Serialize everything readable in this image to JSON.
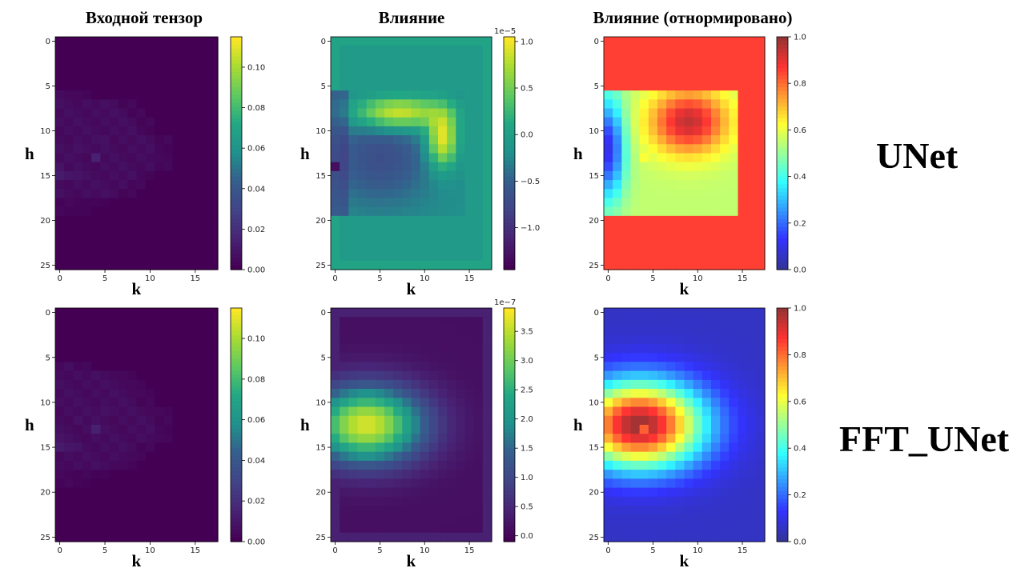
{
  "titles": {
    "input": "Входной тензор",
    "influence": "Влияние",
    "normalized": "Влияние (отнормировано)"
  },
  "row_labels": {
    "unet": "UNet",
    "fft": "FFT_UNet"
  },
  "axis_labels": {
    "x": "k",
    "y": "h"
  },
  "chart_data": [
    {
      "type": "heatmap",
      "row": "UNet",
      "column": "Входной тензор",
      "colormap": "viridis",
      "xlim": [
        0,
        17
      ],
      "ylim": [
        0,
        25
      ],
      "xticks": [
        "0",
        "5",
        "10",
        "15"
      ],
      "yticks": [
        "0",
        "5",
        "10",
        "15",
        "20",
        "25"
      ],
      "colorbar": {
        "min": 0.0,
        "max": 0.115,
        "ticks": [
          "0.00",
          "0.02",
          "0.04",
          "0.06",
          "0.08",
          "0.10"
        ],
        "offset": ""
      },
      "peak": {
        "h": 13,
        "k": 4,
        "value": 0.115
      }
    },
    {
      "type": "heatmap",
      "row": "UNet",
      "column": "Влияние",
      "colormap": "viridis",
      "xlim": [
        0,
        17
      ],
      "ylim": [
        0,
        25
      ],
      "xticks": [
        "0",
        "5",
        "10",
        "15"
      ],
      "yticks": [
        "0",
        "5",
        "10",
        "15",
        "20",
        "25"
      ],
      "colorbar": {
        "min": -1.45,
        "max": 1.05,
        "ticks": [
          "−1.0",
          "−0.5",
          "0.0",
          "0.5",
          "1.0"
        ],
        "offset": "1e−5"
      }
    },
    {
      "type": "heatmap",
      "row": "UNet",
      "column": "Влияние (отнормировано)",
      "colormap": "jet",
      "overlay_alpha": 0.55,
      "xlim": [
        0,
        17
      ],
      "ylim": [
        0,
        25
      ],
      "xticks": [
        "0",
        "5",
        "10",
        "15"
      ],
      "yticks": [
        "0",
        "5",
        "10",
        "15",
        "20",
        "25"
      ],
      "colorbar": {
        "min": 0.0,
        "max": 1.0,
        "ticks": [
          "0.0",
          "0.2",
          "0.4",
          "0.6",
          "0.8",
          "1.0"
        ],
        "offset": ""
      }
    },
    {
      "type": "heatmap",
      "row": "FFT_UNet",
      "column": "Входной тензор",
      "colormap": "viridis",
      "xlim": [
        0,
        17
      ],
      "ylim": [
        0,
        25
      ],
      "xticks": [
        "0",
        "5",
        "10",
        "15"
      ],
      "yticks": [
        "0",
        "5",
        "10",
        "15",
        "20",
        "25"
      ],
      "colorbar": {
        "min": 0.0,
        "max": 0.115,
        "ticks": [
          "0.00",
          "0.02",
          "0.04",
          "0.06",
          "0.08",
          "0.10"
        ],
        "offset": ""
      }
    },
    {
      "type": "heatmap",
      "row": "FFT_UNet",
      "column": "Влияние",
      "colormap": "viridis",
      "xlim": [
        0,
        17
      ],
      "ylim": [
        0,
        25
      ],
      "xticks": [
        "0",
        "5",
        "10",
        "15"
      ],
      "yticks": [
        "0",
        "5",
        "10",
        "15",
        "20",
        "25"
      ],
      "colorbar": {
        "min": -0.1,
        "max": 3.9,
        "ticks": [
          "0.0",
          "0.5",
          "1.0",
          "1.5",
          "2.0",
          "2.5",
          "3.0",
          "3.5"
        ],
        "offset": "1e−7"
      }
    },
    {
      "type": "heatmap",
      "row": "FFT_UNet",
      "column": "Влияние (отнормировано)",
      "colormap": "jet",
      "overlay_alpha": 0.55,
      "xlim": [
        0,
        17
      ],
      "ylim": [
        0,
        25
      ],
      "xticks": [
        "0",
        "5",
        "10",
        "15"
      ],
      "yticks": [
        "0",
        "5",
        "10",
        "15",
        "20",
        "25"
      ],
      "colorbar": {
        "min": 0.0,
        "max": 1.0,
        "ticks": [
          "0.0",
          "0.2",
          "0.4",
          "0.6",
          "0.8",
          "1.0"
        ],
        "offset": ""
      }
    }
  ]
}
